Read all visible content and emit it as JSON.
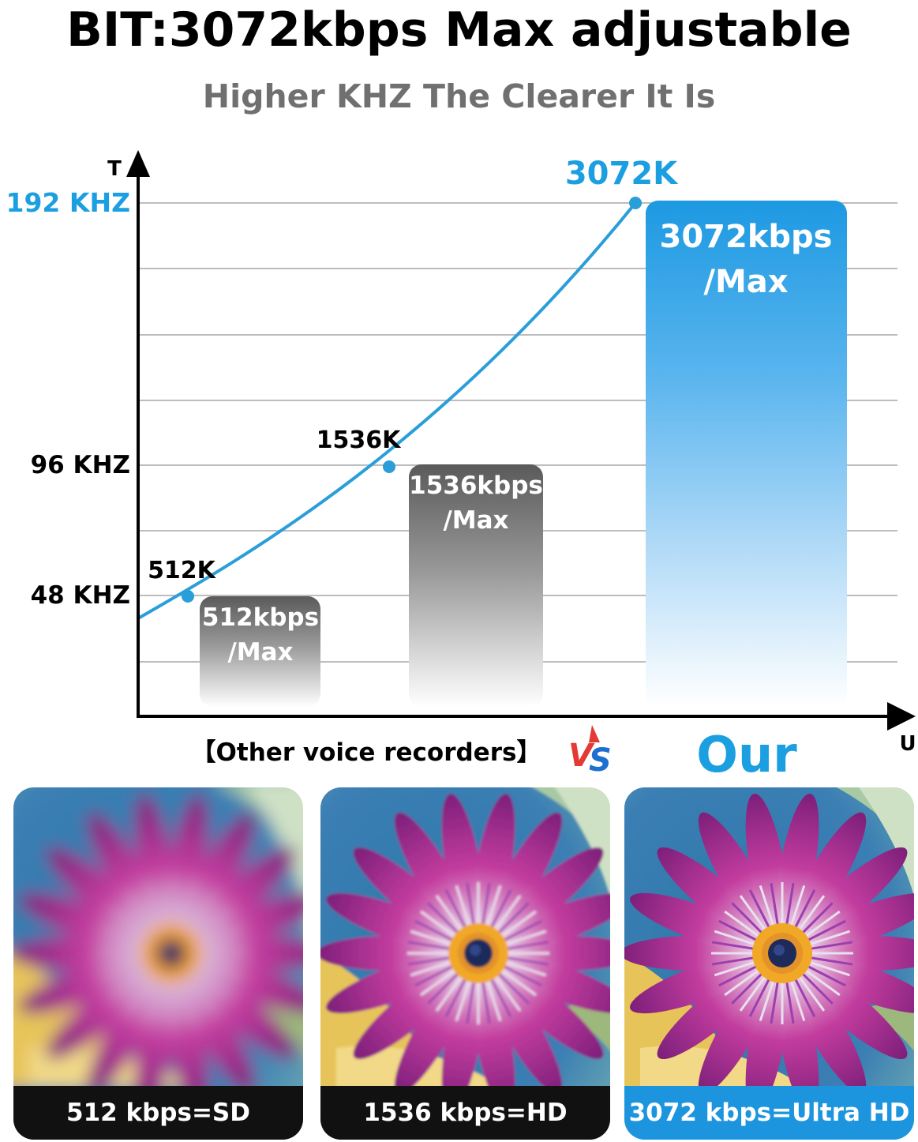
{
  "header": {
    "title": "BIT:3072kbps Max adjustable",
    "subtitle": "Higher KHZ The Clearer It Is"
  },
  "chart_data": {
    "type": "bar",
    "x_axis_letter": "U",
    "y_axis_letter": "T",
    "y_tick_labels": [
      "48 KHZ",
      "96 KHZ",
      "192 KHZ"
    ],
    "y_tick_values": [
      48,
      96,
      192
    ],
    "ylim": [
      0,
      192
    ],
    "categories": [
      "512kbps",
      "1536kbps",
      "3072kbps"
    ],
    "bars": [
      {
        "label_line1": "512kbps",
        "label_line2": "/Max",
        "value": 512,
        "group": "other"
      },
      {
        "label_line1": "1536kbps",
        "label_line2": "/Max",
        "value": 1536,
        "group": "other"
      },
      {
        "label_line1": "3072kbps",
        "label_line2": "/Max",
        "value": 3072,
        "group": "our"
      }
    ],
    "curve_points": [
      {
        "label": "512K",
        "kbps": 512
      },
      {
        "label": "1536K",
        "kbps": 1536
      },
      {
        "label": "3072K",
        "kbps": 3072
      }
    ],
    "group_labels": {
      "other": "【Other voice recorders】",
      "vs": "VS",
      "our": "Our"
    },
    "grid": true,
    "colors": {
      "accent": "#1c9fe0",
      "curve": "#2a9ed9",
      "gray_bar_top": "#5c5c5c",
      "blue_bar_top": "#1e9ae3",
      "grid": "#bdbdbd",
      "axis": "#000000"
    }
  },
  "comparison": {
    "panels": [
      {
        "caption": "512 kbps=SD",
        "quality": "sd",
        "bar_color": "#111111"
      },
      {
        "caption": "1536 kbps=HD",
        "quality": "hd",
        "bar_color": "#111111"
      },
      {
        "caption": "3072 kbps=Ultra HD",
        "quality": "uhd",
        "bar_color": "#1c95de"
      }
    ]
  }
}
